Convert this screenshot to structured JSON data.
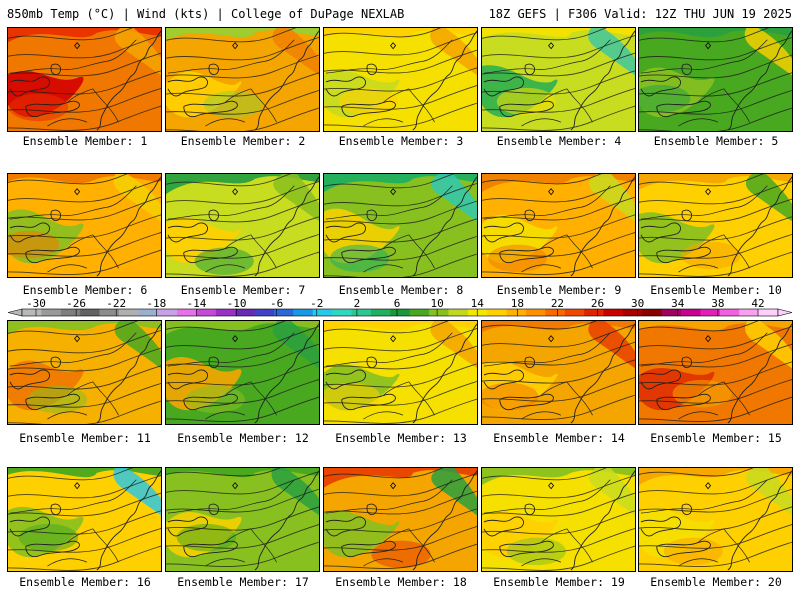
{
  "header": {
    "left": "850mb Temp (°C) | Wind (kts) | College of DuPage NEXLAB",
    "right": "18Z GEFS | F306 Valid: 12Z THU JUN 19 2025"
  },
  "legend": {
    "labels": [
      "-30",
      "-26",
      "-22",
      "-18",
      "-14",
      "-10",
      "-6",
      "-2",
      "2",
      "6",
      "10",
      "14",
      "18",
      "22",
      "26",
      "30",
      "34",
      "38",
      "42"
    ],
    "colors": [
      "#b8b8b8",
      "#9a9a9a",
      "#7e7e7e",
      "#626262",
      "#8c8c8c",
      "#b0b0b0",
      "#9ab0cc",
      "#c8a0e8",
      "#e870e8",
      "#c848d8",
      "#9a30c8",
      "#6a28b8",
      "#4040c8",
      "#2868d8",
      "#1898e8",
      "#28c8e8",
      "#30d8c0",
      "#28c890",
      "#20b060",
      "#189838",
      "#48a820",
      "#88c020",
      "#c0d820",
      "#f0e800",
      "#ffd000",
      "#ffb000",
      "#ff9000",
      "#f86a00",
      "#f04800",
      "#e02400",
      "#c80000",
      "#a80000",
      "#880000",
      "#a00060",
      "#c80090",
      "#e020b8",
      "#f060e0",
      "#f8a0f0",
      "#fcd0fa"
    ]
  },
  "members": [
    {
      "label": "Ensemble Member: 1",
      "palette": [
        "#f07800",
        "#e83000",
        "#d40000",
        "#f5a500"
      ]
    },
    {
      "label": "Ensemble Member: 2",
      "palette": [
        "#f5a500",
        "#9acd32",
        "#ffd000",
        "#f08000"
      ]
    },
    {
      "label": "Ensemble Member: 3",
      "palette": [
        "#f5e000",
        "#ffd000",
        "#c8dc20",
        "#f5a500"
      ]
    },
    {
      "label": "Ensemble Member: 4",
      "palette": [
        "#c8dc20",
        "#f5e000",
        "#2fb050",
        "#40c8a0"
      ]
    },
    {
      "label": "Ensemble Member: 5",
      "palette": [
        "#48a820",
        "#2aa040",
        "#88c020",
        "#f5d000"
      ]
    },
    {
      "label": "Ensemble Member: 6",
      "palette": [
        "#ffb000",
        "#f07800",
        "#88c020",
        "#f5d000"
      ]
    },
    {
      "label": "Ensemble Member: 7",
      "palette": [
        "#c8dc20",
        "#2aa040",
        "#ffd000",
        "#88c020"
      ]
    },
    {
      "label": "Ensemble Member: 8",
      "palette": [
        "#88c020",
        "#20b060",
        "#f5d000",
        "#30c8b0"
      ]
    },
    {
      "label": "Ensemble Member: 9",
      "palette": [
        "#ffb000",
        "#f08000",
        "#f5e000",
        "#c8dc20"
      ]
    },
    {
      "label": "Ensemble Member: 10",
      "palette": [
        "#ffd000",
        "#f5a500",
        "#88c020",
        "#48a820"
      ]
    },
    {
      "label": "Ensemble Member: 11",
      "palette": [
        "#f5b000",
        "#88c020",
        "#f07800",
        "#48a820"
      ]
    },
    {
      "label": "Ensemble Member: 12",
      "palette": [
        "#48a820",
        "#88c020",
        "#f5a500",
        "#2aa040"
      ]
    },
    {
      "label": "Ensemble Member: 13",
      "palette": [
        "#f5e000",
        "#ffd000",
        "#88c020",
        "#f5a500"
      ]
    },
    {
      "label": "Ensemble Member: 14",
      "palette": [
        "#f5a500",
        "#f07800",
        "#ffd000",
        "#e84000"
      ]
    },
    {
      "label": "Ensemble Member: 15",
      "palette": [
        "#f07800",
        "#f5a500",
        "#e03000",
        "#ffd000"
      ]
    },
    {
      "label": "Ensemble Member: 16",
      "palette": [
        "#ffd000",
        "#48a820",
        "#88c020",
        "#30c8e0"
      ]
    },
    {
      "label": "Ensemble Member: 17",
      "palette": [
        "#88c020",
        "#48a820",
        "#f5d000",
        "#2aa040"
      ]
    },
    {
      "label": "Ensemble Member: 18",
      "palette": [
        "#f5a500",
        "#e84000",
        "#88c020",
        "#2aa040"
      ]
    },
    {
      "label": "Ensemble Member: 19",
      "palette": [
        "#f5e000",
        "#88c020",
        "#ffd000",
        "#c8dc20"
      ]
    },
    {
      "label": "Ensemble Member: 20",
      "palette": [
        "#ffd000",
        "#f5a500",
        "#f5e000",
        "#c8dc20"
      ]
    }
  ]
}
